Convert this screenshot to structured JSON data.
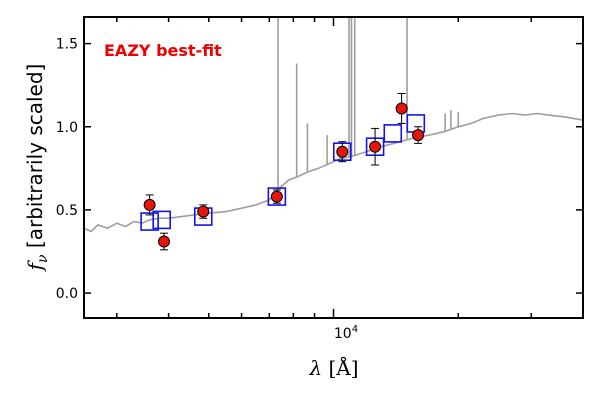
{
  "chart_data": {
    "type": "scatter",
    "annotation": "EAZY best-fit",
    "xlabel_var": "λ",
    "xlabel_unit": "[Å]",
    "ylabel_var": "f",
    "ylabel_sub": "ν",
    "ylabel_text": "[arbitrarily scaled]",
    "x_scale": "log",
    "xlim": [
      2500,
      40000
    ],
    "ylim": [
      -0.15,
      1.66
    ],
    "x_tick_label": {
      "value": 10000,
      "base": "10",
      "exp": "4"
    },
    "y_ticks": [
      0.0,
      0.5,
      1.0,
      1.5
    ],
    "y_tick_labels": [
      "0.0",
      "0.5",
      "1.0",
      "1.5"
    ],
    "colors": {
      "observed": "#e8140c",
      "model": "#1414e6",
      "template": "#9e9e9e",
      "annotation": "#ee0000"
    },
    "series": [
      {
        "kind": "observed",
        "marker": "circle",
        "points": [
          {
            "x": 3600,
            "y": 0.53,
            "err": 0.06
          },
          {
            "x": 3900,
            "y": 0.31,
            "err": 0.05
          },
          {
            "x": 4850,
            "y": 0.49,
            "err": 0.04
          },
          {
            "x": 7300,
            "y": 0.58,
            "err": 0.04
          },
          {
            "x": 10500,
            "y": 0.85,
            "err": 0.06
          },
          {
            "x": 12600,
            "y": 0.88,
            "err": 0.11
          },
          {
            "x": 14600,
            "y": 1.11,
            "err": 0.09
          },
          {
            "x": 16000,
            "y": 0.95,
            "err": 0.05
          }
        ]
      },
      {
        "kind": "model",
        "marker": "square",
        "points": [
          {
            "x": 3600,
            "y": 0.43
          },
          {
            "x": 3850,
            "y": 0.44
          },
          {
            "x": 4850,
            "y": 0.46
          },
          {
            "x": 7300,
            "y": 0.58
          },
          {
            "x": 10500,
            "y": 0.85
          },
          {
            "x": 12600,
            "y": 0.88
          },
          {
            "x": 13900,
            "y": 0.96
          },
          {
            "x": 15800,
            "y": 1.02
          }
        ]
      },
      {
        "kind": "template",
        "line": [
          [
            2500,
            0.39
          ],
          [
            2600,
            0.37
          ],
          [
            2700,
            0.41
          ],
          [
            2850,
            0.39
          ],
          [
            3000,
            0.42
          ],
          [
            3150,
            0.4
          ],
          [
            3300,
            0.43
          ],
          [
            3450,
            0.42
          ],
          [
            3600,
            0.44
          ],
          [
            3800,
            0.45
          ],
          [
            4000,
            0.45
          ],
          [
            4300,
            0.46
          ],
          [
            4600,
            0.47
          ],
          [
            5000,
            0.48
          ],
          [
            5500,
            0.49
          ],
          [
            6000,
            0.51
          ],
          [
            6500,
            0.53
          ],
          [
            7000,
            0.56
          ],
          [
            7400,
            0.63
          ],
          [
            7800,
            0.68
          ],
          [
            8200,
            0.7
          ],
          [
            8700,
            0.73
          ],
          [
            9200,
            0.75
          ],
          [
            9800,
            0.78
          ],
          [
            10400,
            0.81
          ],
          [
            11000,
            0.82
          ],
          [
            12000,
            0.85
          ],
          [
            13000,
            0.88
          ],
          [
            14000,
            0.9
          ],
          [
            15500,
            0.93
          ],
          [
            17000,
            0.95
          ],
          [
            18500,
            0.97
          ],
          [
            20000,
            1.0
          ],
          [
            21500,
            1.02
          ],
          [
            23000,
            1.05
          ],
          [
            25000,
            1.07
          ],
          [
            27000,
            1.08
          ],
          [
            29000,
            1.07
          ],
          [
            31000,
            1.08
          ],
          [
            33000,
            1.07
          ],
          [
            36000,
            1.06
          ],
          [
            40000,
            1.04
          ]
        ],
        "emission_lines": [
          {
            "x": 7350,
            "y": 4.0
          },
          {
            "x": 8150,
            "y": 1.38
          },
          {
            "x": 8650,
            "y": 1.02
          },
          {
            "x": 9650,
            "y": 0.95
          },
          {
            "x": 10350,
            "y": 0.88
          },
          {
            "x": 10900,
            "y": 4.0
          },
          {
            "x": 11050,
            "y": 4.0
          },
          {
            "x": 11250,
            "y": 4.0
          },
          {
            "x": 15050,
            "y": 4.0
          },
          {
            "x": 18600,
            "y": 1.08
          },
          {
            "x": 19200,
            "y": 1.1
          },
          {
            "x": 20000,
            "y": 1.09
          }
        ]
      }
    ]
  }
}
